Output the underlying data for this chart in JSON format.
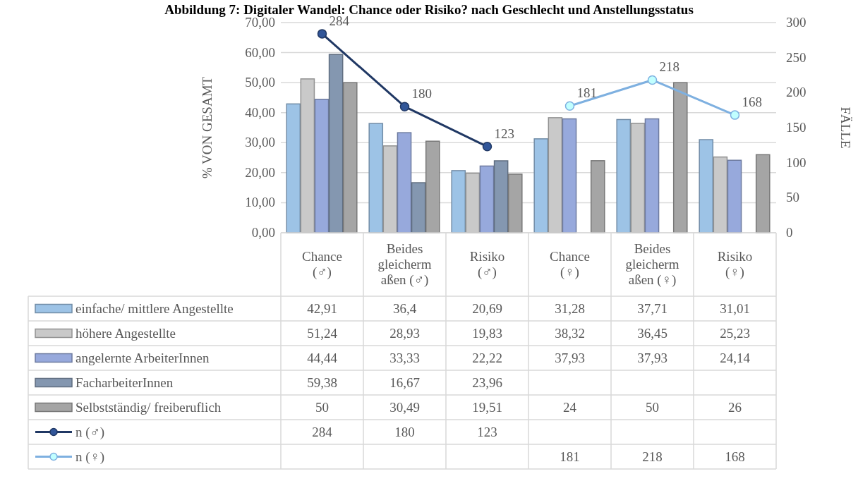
{
  "chart_data": {
    "type": "bar",
    "title": "Abbildung 7: Digitaler Wandel: Chance oder Risiko? nach Geschlecht und Anstellungsstatus",
    "ylabel": "% VON GESAMT",
    "y2label": "FÄLLE",
    "categories": [
      "Chance (♂)",
      "Beides gleichermaßen (♂)",
      "Risiko (♂)",
      "Chance (♀)",
      "Beides gleichermaßen (♀)",
      "Risiko (♀)"
    ],
    "series": [
      {
        "name": "einfache/ mittlere Angestellte",
        "color": "#9dc3e6",
        "values": [
          42.91,
          36.4,
          20.69,
          31.28,
          37.71,
          31.01
        ],
        "value_labels": [
          "42,91",
          "36,4",
          "20,69",
          "31,28",
          "37,71",
          "31,01"
        ]
      },
      {
        "name": "höhere Angestellte",
        "color": "#c9c9c9",
        "values": [
          51.24,
          28.93,
          19.83,
          38.32,
          36.45,
          25.23
        ],
        "value_labels": [
          "51,24",
          "28,93",
          "19,83",
          "38,32",
          "36,45",
          "25,23"
        ]
      },
      {
        "name": "angelernte ArbeiterInnen",
        "color": "#97a9dc",
        "values": [
          44.44,
          33.33,
          22.22,
          37.93,
          37.93,
          24.14
        ],
        "value_labels": [
          "44,44",
          "33,33",
          "22,22",
          "37,93",
          "37,93",
          "24,14"
        ]
      },
      {
        "name": "FacharbeiterInnen",
        "color": "#8497b0",
        "values": [
          59.38,
          16.67,
          23.96,
          null,
          null,
          null
        ],
        "value_labels": [
          "59,38",
          "16,67",
          "23,96",
          null,
          null,
          null
        ]
      },
      {
        "name": "Selbstständig/ freiberuflich",
        "color": "#a5a5a5",
        "values": [
          50,
          30.49,
          19.51,
          24,
          50,
          26
        ],
        "value_labels": [
          "50",
          "30,49",
          "19,51",
          "24",
          "50",
          "26"
        ]
      },
      {
        "name": "n (♂)",
        "type": "line",
        "axis": "y2",
        "color": "#203864",
        "values": [
          284,
          180,
          123,
          null,
          null,
          null
        ],
        "value_labels": [
          "284",
          "180",
          "123",
          null,
          null,
          null
        ]
      },
      {
        "name": "n (♀)",
        "type": "line",
        "axis": "y2",
        "color": "#7eb0e0",
        "values": [
          null,
          null,
          null,
          181,
          218,
          168
        ],
        "value_labels": [
          null,
          null,
          null,
          "181",
          "218",
          "168"
        ]
      }
    ],
    "ylim": [
      0,
      70
    ],
    "yticks": [
      {
        "value": 0,
        "label": "0,00"
      },
      {
        "value": 10,
        "label": "10,00"
      },
      {
        "value": 20,
        "label": "20,00"
      },
      {
        "value": 30,
        "label": "30,00"
      },
      {
        "value": 40,
        "label": "40,00"
      },
      {
        "value": 50,
        "label": "50,00"
      },
      {
        "value": 60,
        "label": "60,00"
      },
      {
        "value": 70,
        "label": "70,00"
      }
    ],
    "y2lim": [
      0,
      300
    ],
    "y2ticks": [
      0,
      50,
      100,
      150,
      200,
      250,
      300
    ],
    "grid": "y",
    "legend": "bottom left",
    "marker": "circle"
  }
}
